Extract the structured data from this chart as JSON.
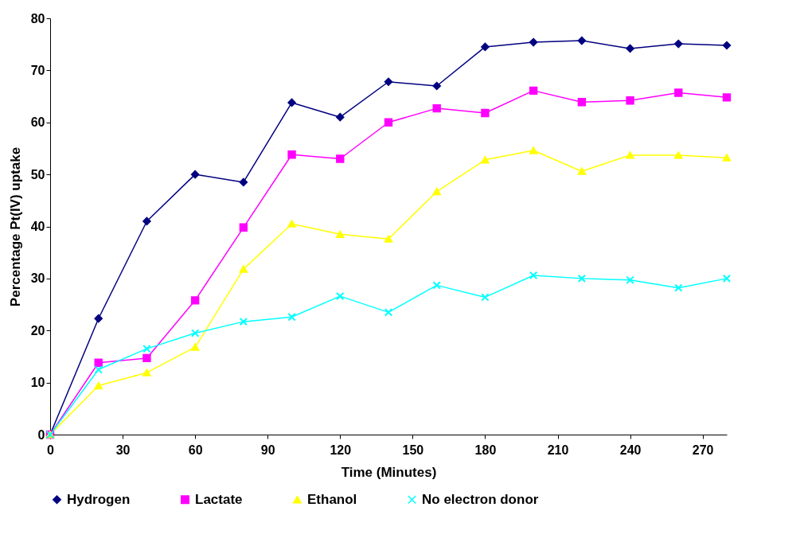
{
  "chart_data": {
    "type": "line",
    "xlabel": "Time (Minutes)",
    "ylabel": "Percentage Pt(IV) uptake",
    "x": [
      0,
      20,
      40,
      60,
      80,
      100,
      120,
      140,
      160,
      180,
      200,
      220,
      240,
      260,
      280
    ],
    "series": [
      {
        "name": "Hydrogen",
        "color": "#000080",
        "marker": "diamond",
        "values": [
          0,
          22.3,
          41,
          50,
          48.5,
          63.8,
          61,
          67.8,
          67,
          74.5,
          75.4,
          75.7,
          74.2,
          75.1,
          74.8
        ]
      },
      {
        "name": "Lactate",
        "color": "#ff00ff",
        "marker": "square",
        "values": [
          0,
          13.8,
          14.7,
          25.8,
          39.8,
          53.8,
          53,
          60,
          62.7,
          61.8,
          66.1,
          63.9,
          64.2,
          65.7,
          64.8
        ]
      },
      {
        "name": "Ethanol",
        "color": "#ffff00",
        "marker": "triangle",
        "values": [
          0,
          9.4,
          11.9,
          16.8,
          31.8,
          40.5,
          38.5,
          37.6,
          46.7,
          52.8,
          54.6,
          50.6,
          53.7,
          53.7,
          53.2
        ]
      },
      {
        "name": "No electron donor",
        "color": "#00ffff",
        "marker": "cross",
        "values": [
          0,
          12.5,
          16.5,
          19.5,
          21.7,
          22.6,
          26.6,
          23.5,
          28.7,
          26.4,
          30.6,
          30,
          29.7,
          28.2,
          30
        ]
      }
    ],
    "xlim": [
      0,
      280
    ],
    "xticks": [
      0,
      30,
      60,
      90,
      120,
      150,
      180,
      210,
      240,
      270
    ],
    "ylim": [
      0,
      80
    ],
    "yticks": [
      0,
      10,
      20,
      30,
      40,
      50,
      60,
      70,
      80
    ],
    "grid": false,
    "legend": "bottom",
    "line_style": "solid"
  }
}
